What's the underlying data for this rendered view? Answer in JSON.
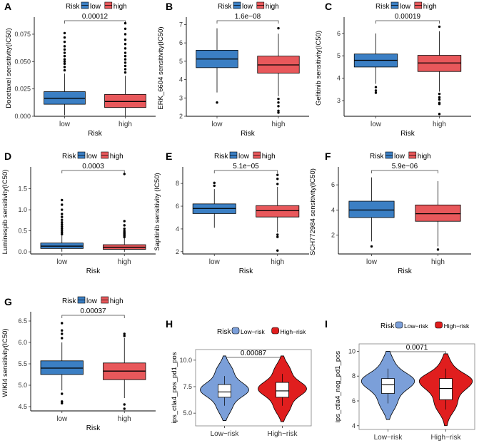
{
  "colors": {
    "box_low": "#3B7FC4",
    "box_high": "#E8585B",
    "violin_low": "#7B9FD9",
    "violin_high": "#E01E1E",
    "axis": "#000000",
    "panel_border": "#7F7F7F"
  },
  "chart_data": [
    {
      "panel": "A",
      "type": "box",
      "legend_title": "Risk",
      "legend": [
        "low",
        "high"
      ],
      "p_value": "0.00012",
      "ylabel": "Docetaxel sensitivity(IC50)",
      "xlabel": "Risk",
      "categories": [
        "low",
        "high"
      ],
      "ylim": [
        0,
        0.088
      ],
      "yticks": [
        0,
        0.025,
        0.05,
        0.075
      ],
      "ytick_labels": [
        "0.000",
        "0.025",
        "0.050",
        "0.075"
      ],
      "boxes": [
        {
          "q1": 0.011,
          "median": 0.0165,
          "q3": 0.0225,
          "wlo": 0.001,
          "whi": 0.039,
          "outliers": [
            0.042,
            0.045,
            0.048,
            0.05,
            0.052,
            0.055,
            0.058,
            0.061,
            0.064,
            0.068,
            0.072,
            0.076
          ]
        },
        {
          "q1": 0.008,
          "median": 0.0135,
          "q3": 0.02,
          "wlo": 0.0005,
          "whi": 0.037,
          "outliers": [
            0.04,
            0.043,
            0.046,
            0.049,
            0.052,
            0.055,
            0.058,
            0.062,
            0.066,
            0.07,
            0.075,
            0.08,
            0.085
          ]
        }
      ]
    },
    {
      "panel": "B",
      "type": "box",
      "legend_title": "Risk",
      "legend": [
        "low",
        "high"
      ],
      "p_value": "1.6e−08",
      "ylabel": "ERK_6604 sensitivity(IC50)",
      "xlabel": "Risk",
      "categories": [
        "low",
        "high"
      ],
      "ylim": [
        2,
        7.25
      ],
      "yticks": [
        2,
        3,
        4,
        5,
        6,
        7
      ],
      "ytick_labels": [
        "2",
        "3",
        "4",
        "5",
        "6",
        "7"
      ],
      "boxes": [
        {
          "q1": 4.65,
          "median": 5.12,
          "q3": 5.6,
          "wlo": 3.3,
          "whi": 6.8,
          "outliers": [
            2.75
          ]
        },
        {
          "q1": 4.35,
          "median": 4.8,
          "q3": 5.28,
          "wlo": 3.1,
          "whi": 6.5,
          "outliers": [
            6.8,
            2.95,
            2.75,
            2.55,
            2.3,
            2.2
          ]
        }
      ]
    },
    {
      "panel": "C",
      "type": "box",
      "legend_title": "Risk",
      "legend": [
        "low",
        "high"
      ],
      "p_value": "0.00019",
      "ylabel": "Gefitinib sensitivity(IC50)",
      "xlabel": "Risk",
      "categories": [
        "low",
        "high"
      ],
      "ylim": [
        2.3,
        6.6
      ],
      "yticks": [
        3,
        4,
        5,
        6
      ],
      "ytick_labels": [
        "3",
        "4",
        "5",
        "6"
      ],
      "boxes": [
        {
          "q1": 4.5,
          "median": 4.8,
          "q3": 5.08,
          "wlo": 3.75,
          "whi": 6.0,
          "outliers": [
            3.6,
            3.45,
            3.35
          ]
        },
        {
          "q1": 4.3,
          "median": 4.68,
          "q3": 5.02,
          "wlo": 3.4,
          "whi": 6.1,
          "outliers": [
            6.3,
            3.3,
            3.15,
            3.05,
            2.9,
            2.85,
            2.4
          ]
        }
      ]
    },
    {
      "panel": "D",
      "type": "box",
      "legend_title": "Risk",
      "legend": [
        "low",
        "high"
      ],
      "p_value": "0.0003",
      "ylabel": "Luminespib sensitivity(IC50)",
      "xlabel": "Risk",
      "categories": [
        "low",
        "high"
      ],
      "ylim": [
        -0.05,
        1.95
      ],
      "yticks": [
        0,
        0.5,
        1.0,
        1.5
      ],
      "ytick_labels": [
        "0.0",
        "0.5",
        "1.0",
        "1.5"
      ],
      "boxes": [
        {
          "q1": 0.08,
          "median": 0.135,
          "q3": 0.21,
          "wlo": 0.005,
          "whi": 0.4,
          "outliers": [
            0.42,
            0.46,
            0.5,
            0.55,
            0.6,
            0.65,
            0.7,
            0.76,
            0.83,
            0.9,
            1.0,
            1.12,
            1.23
          ]
        },
        {
          "q1": 0.06,
          "median": 0.11,
          "q3": 0.17,
          "wlo": 0.002,
          "whi": 0.33,
          "outliers": [
            0.35,
            0.38,
            0.41,
            0.44,
            0.47,
            0.5,
            0.55,
            0.63,
            0.73,
            1.85
          ]
        }
      ]
    },
    {
      "panel": "E",
      "type": "box",
      "legend_title": "Risk",
      "legend": [
        "low",
        "high"
      ],
      "p_value": "5.1e−05",
      "ylabel": "Sapitinib sensitivity (IC50)",
      "xlabel": "Risk",
      "categories": [
        "low",
        "high"
      ],
      "ylim": [
        1.8,
        9.2
      ],
      "yticks": [
        2,
        4,
        6,
        8
      ],
      "ytick_labels": [
        "2",
        "4",
        "6",
        "8"
      ],
      "boxes": [
        {
          "q1": 5.35,
          "median": 5.8,
          "q3": 6.2,
          "wlo": 4.1,
          "whi": 7.5,
          "outliers": [
            7.8,
            8.05
          ]
        },
        {
          "q1": 5.05,
          "median": 5.6,
          "q3": 6.05,
          "wlo": 3.7,
          "whi": 7.7,
          "outliers": [
            7.95,
            8.4,
            8.75,
            3.5,
            3.3,
            2.1
          ]
        }
      ]
    },
    {
      "panel": "F",
      "type": "box",
      "legend_title": "Risk",
      "legend": [
        "low",
        "high"
      ],
      "p_value": "5.9e−06",
      "ylabel": "SCH772984 sensitivity(IC50)",
      "xlabel": "Risk",
      "categories": [
        "low",
        "high"
      ],
      "ylim": [
        0.5,
        7.2
      ],
      "yticks": [
        2,
        4,
        6
      ],
      "ytick_labels": [
        "2",
        "4",
        "6"
      ],
      "boxes": [
        {
          "q1": 3.4,
          "median": 4.0,
          "q3": 4.7,
          "wlo": 1.5,
          "whi": 6.6,
          "outliers": [
            1.1
          ]
        },
        {
          "q1": 3.1,
          "median": 3.7,
          "q3": 4.4,
          "wlo": 1.1,
          "whi": 6.3,
          "outliers": [
            0.85
          ]
        }
      ]
    },
    {
      "panel": "G",
      "type": "box",
      "legend_title": "Risk",
      "legend": [
        "low",
        "high"
      ],
      "p_value": "0.00037",
      "ylabel": "WIKI4 sensitivity(IC50)",
      "xlabel": "Risk",
      "categories": [
        "low",
        "high"
      ],
      "ylim": [
        4.4,
        6.65
      ],
      "yticks": [
        4.5,
        5.0,
        5.5,
        6.0,
        6.5
      ],
      "ytick_labels": [
        "4.5",
        "5.0",
        "5.5",
        "6.0",
        "6.5"
      ],
      "boxes": [
        {
          "q1": 5.25,
          "median": 5.4,
          "q3": 5.57,
          "wlo": 4.88,
          "whi": 6.0,
          "outliers": [
            6.1,
            6.2,
            6.28,
            6.45,
            4.8,
            4.62,
            4.58
          ]
        },
        {
          "q1": 5.13,
          "median": 5.33,
          "q3": 5.52,
          "wlo": 4.7,
          "whi": 6.1,
          "outliers": [
            6.15,
            6.2,
            4.55,
            4.45
          ]
        }
      ]
    },
    {
      "panel": "H",
      "type": "violin",
      "legend_title": "Risk",
      "legend": [
        "Low−risk",
        "High−risk"
      ],
      "p_value": "0.00087",
      "ylabel": "ips_ctla4_pos_pd1_pos",
      "xlabel": "",
      "categories": [
        "Low−risk",
        "High−risk"
      ],
      "ylim": [
        3.8,
        11.0
      ],
      "yticks": [
        5.0,
        7.5,
        10.0
      ],
      "ytick_labels": [
        "5.0",
        "7.5",
        "10.0"
      ],
      "violins": [
        {
          "min": 4.3,
          "max": 10.4,
          "q1": 6.5,
          "median": 7.0,
          "q3": 7.7,
          "modes": [
            7.2
          ],
          "width": 0.42
        },
        {
          "min": 4.2,
          "max": 10.4,
          "q1": 6.5,
          "median": 7.1,
          "q3": 7.9,
          "modes": [
            7.3
          ],
          "width": 0.42
        }
      ]
    },
    {
      "panel": "I",
      "type": "violin",
      "legend_title": "Risk",
      "legend": [
        "Low−risk",
        "High−risk"
      ],
      "p_value": "0.0071",
      "ylabel": "ips_ctla4_neg_pd1_pos",
      "xlabel": "",
      "categories": [
        "Low−risk",
        "High−risk"
      ],
      "ylim": [
        3.7,
        10.6
      ],
      "yticks": [
        4,
        6,
        8,
        10
      ],
      "ytick_labels": [
        "4",
        "6",
        "8",
        "10"
      ],
      "violins": [
        {
          "min": 4.5,
          "max": 10.0,
          "q1": 6.6,
          "median": 7.3,
          "q3": 7.8,
          "modes": [
            7.6
          ],
          "width": 0.46
        },
        {
          "min": 4.0,
          "max": 9.8,
          "q1": 6.1,
          "median": 7.0,
          "q3": 7.8,
          "modes": [
            7.6
          ],
          "width": 0.46
        }
      ]
    }
  ]
}
